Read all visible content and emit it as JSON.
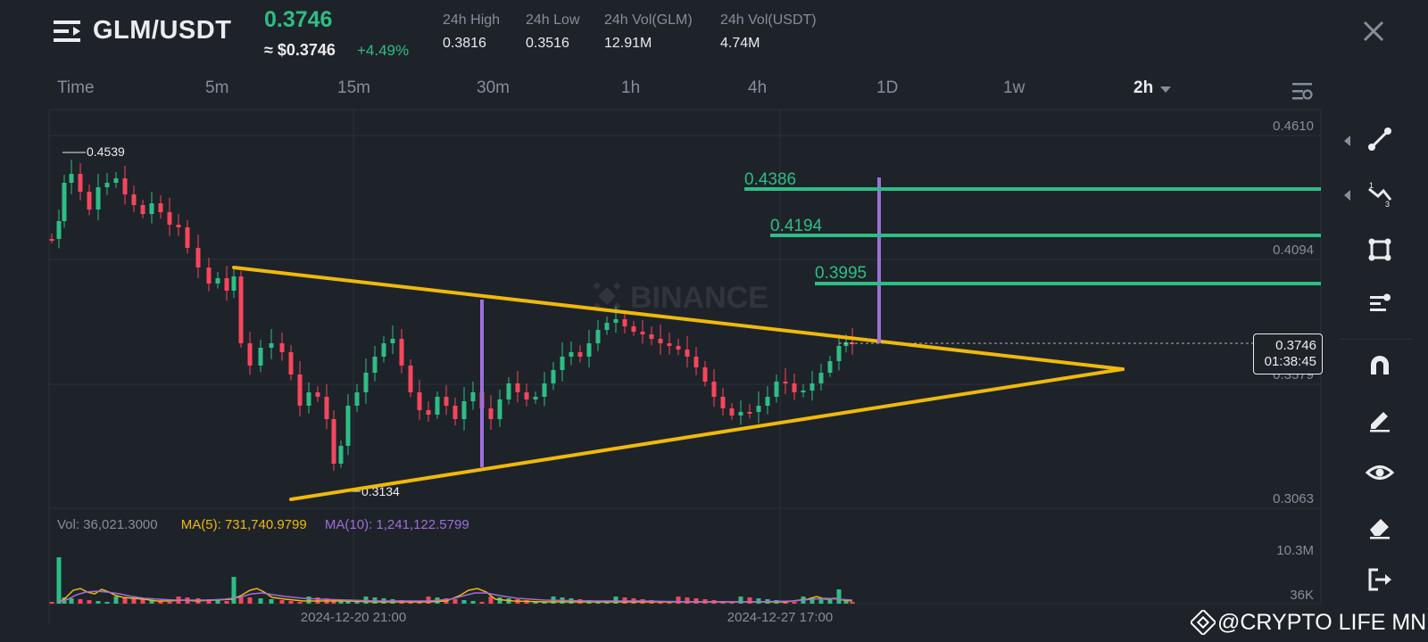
{
  "header": {
    "pair": "GLM/USDT",
    "last_price": "0.3746",
    "usd_price": "≈ $0.3746",
    "change_pct": "+4.49%",
    "stats": [
      {
        "label": "24h High",
        "value": "0.3816"
      },
      {
        "label": "24h Low",
        "value": "0.3516"
      },
      {
        "label": "24h Vol(GLM)",
        "value": "12.91M"
      },
      {
        "label": "24h Vol(USDT)",
        "value": "4.74M"
      }
    ]
  },
  "intervals": [
    {
      "label": "Time"
    },
    {
      "label": "5m"
    },
    {
      "label": "15m"
    },
    {
      "label": "30m"
    },
    {
      "label": "1h"
    },
    {
      "label": "4h"
    },
    {
      "label": "1D"
    },
    {
      "label": "1w"
    },
    {
      "label": "2h",
      "active": true
    }
  ],
  "colors": {
    "background": "#1e2329",
    "up": "#2ebd85",
    "down": "#f6465d",
    "triangle": "#f0b90b",
    "target_line": "#9d6edb",
    "ma5": "#f0b90b",
    "ma10": "#9d6edb"
  },
  "chart": {
    "price_axis": [
      "0.4610",
      "0.4094",
      "0.3579",
      "0.3063"
    ],
    "volume_axis": [
      "10.3M",
      "36K"
    ],
    "time_axis": [
      "2024-12-20 21:00",
      "2024-12-27 17:00"
    ],
    "high_label": "0.4539",
    "low_label": "0.3134",
    "targets": [
      {
        "label": "0.4386",
        "price": 0.4386
      },
      {
        "label": "0.4194",
        "price": 0.4194
      },
      {
        "label": "0.3995",
        "price": 0.3995
      }
    ],
    "current_price_tag": "0.3746",
    "countdown": "01:38:45",
    "watermark_brand": "BINANCE"
  },
  "volume_legend": {
    "vol": "Vol: 36,021.3000",
    "ma5": "MA(5): 731,740.9799",
    "ma10": "MA(10): 1,241,122.5799"
  },
  "toolbar": [
    "trend-line-icon",
    "fibonacci-icon",
    "rectangle-icon",
    "parallel-channel-icon",
    "magnet-icon",
    "pencil-icon",
    "eye-icon",
    "eraser-icon",
    "exit-icon"
  ],
  "watermark": "@CRYPTO LIFE MNE"
}
